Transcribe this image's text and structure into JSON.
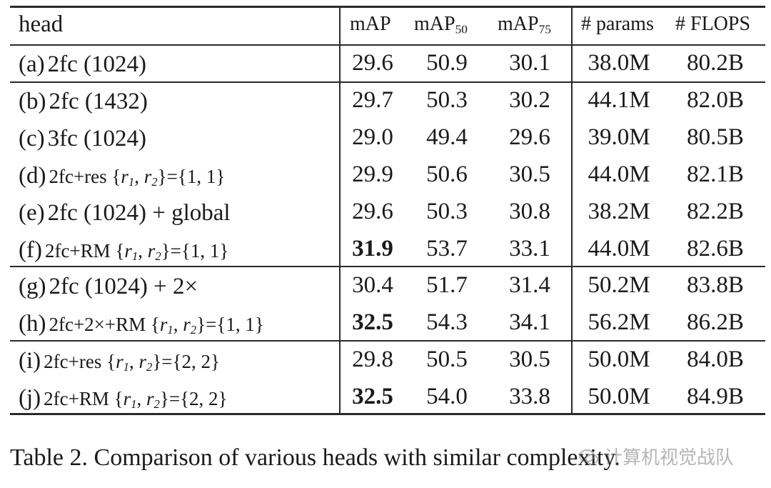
{
  "table": {
    "headers": {
      "head": "head",
      "map": "mAP",
      "map50_base": "mAP",
      "map50_sub": "50",
      "map75_base": "mAP",
      "map75_sub": "75",
      "params": "# params",
      "flops": "# FLOPS"
    },
    "rows": [
      {
        "tag": "(a)",
        "desc": "2fc (1024)",
        "style": "large",
        "map": "29.6",
        "map50": "50.9",
        "map75": "30.1",
        "params": "38.0M",
        "flops": "80.2B",
        "bold": false
      },
      {
        "tag": "(b)",
        "desc": "2fc (1432)",
        "style": "large",
        "map": "29.7",
        "map50": "50.3",
        "map75": "30.2",
        "params": "44.1M",
        "flops": "82.0B",
        "bold": false
      },
      {
        "tag": "(c)",
        "desc": "3fc (1024)",
        "style": "large",
        "map": "29.0",
        "map50": "49.4",
        "map75": "29.6",
        "params": "39.0M",
        "flops": "80.5B",
        "bold": false
      },
      {
        "tag": "(d)",
        "desc": "2fc+res",
        "style": "small",
        "set": "{1, 1}",
        "map": "29.9",
        "map50": "50.6",
        "map75": "30.5",
        "params": "44.0M",
        "flops": "82.1B",
        "bold": false
      },
      {
        "tag": "(e)",
        "desc": "2fc (1024) + global",
        "style": "large",
        "map": "29.6",
        "map50": "50.3",
        "map75": "30.8",
        "params": "38.2M",
        "flops": "82.2B",
        "bold": false
      },
      {
        "tag": "(f)",
        "desc": "2fc+RM",
        "style": "small",
        "set": "{1, 1}",
        "map": "31.9",
        "map50": "53.7",
        "map75": "33.1",
        "params": "44.0M",
        "flops": "82.6B",
        "bold": true
      },
      {
        "tag": "(g)",
        "desc": "2fc (1024) + 2×",
        "style": "large",
        "map": "30.4",
        "map50": "51.7",
        "map75": "31.4",
        "params": "50.2M",
        "flops": "83.8B",
        "bold": false
      },
      {
        "tag": "(h)",
        "desc": "2fc+2×+RM",
        "style": "small",
        "set": "{1, 1}",
        "map": "32.5",
        "map50": "54.3",
        "map75": "34.1",
        "params": "56.2M",
        "flops": "86.2B",
        "bold": true
      },
      {
        "tag": "(i)",
        "desc": "2fc+res",
        "style": "small",
        "set": "{2, 2}",
        "map": "29.8",
        "map50": "50.5",
        "map75": "30.5",
        "params": "50.0M",
        "flops": "84.0B",
        "bold": false
      },
      {
        "tag": "(j)",
        "desc": "2fc+RM",
        "style": "small",
        "set": "{2, 2}",
        "map": "32.5",
        "map50": "54.0",
        "map75": "33.8",
        "params": "50.0M",
        "flops": "84.9B",
        "bold": true
      }
    ],
    "math": {
      "r1": "r",
      "r1_sub": "1",
      "r2": "r",
      "r2_sub": "2"
    }
  },
  "caption": "Table 2. Comparison of various heads with similar complexity.",
  "watermark": "计算机视觉战队"
}
